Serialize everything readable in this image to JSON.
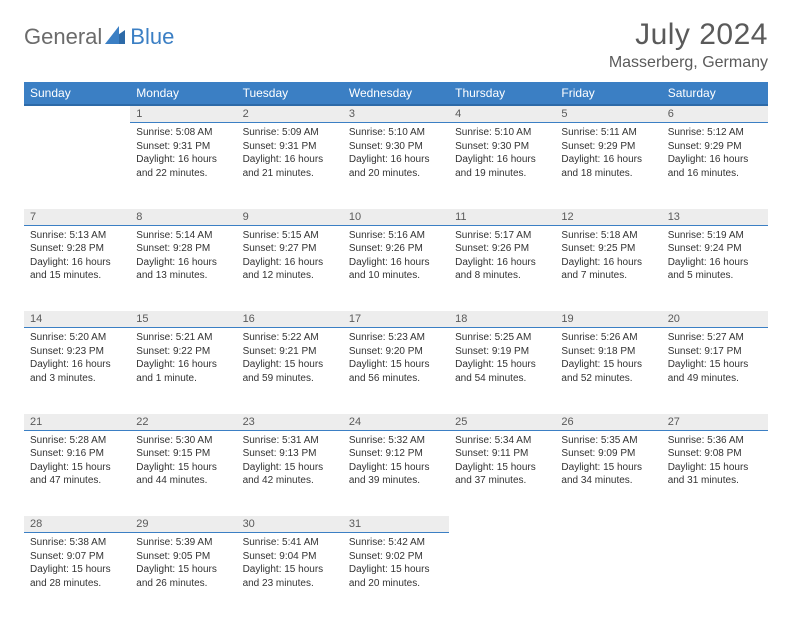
{
  "brand": {
    "part1": "General",
    "part2": "Blue"
  },
  "title": "July 2024",
  "location": "Masserberg, Germany",
  "colors": {
    "header_bg": "#3b7fc4",
    "header_border": "#2d6aa8",
    "daynum_bg": "#ededed",
    "text": "#333333",
    "muted": "#5a5a5a"
  },
  "weekdays": [
    "Sunday",
    "Monday",
    "Tuesday",
    "Wednesday",
    "Thursday",
    "Friday",
    "Saturday"
  ],
  "weeks": [
    [
      null,
      {
        "n": "1",
        "sr": "5:08 AM",
        "ss": "9:31 PM",
        "dl": "16 hours and 22 minutes."
      },
      {
        "n": "2",
        "sr": "5:09 AM",
        "ss": "9:31 PM",
        "dl": "16 hours and 21 minutes."
      },
      {
        "n": "3",
        "sr": "5:10 AM",
        "ss": "9:30 PM",
        "dl": "16 hours and 20 minutes."
      },
      {
        "n": "4",
        "sr": "5:10 AM",
        "ss": "9:30 PM",
        "dl": "16 hours and 19 minutes."
      },
      {
        "n": "5",
        "sr": "5:11 AM",
        "ss": "9:29 PM",
        "dl": "16 hours and 18 minutes."
      },
      {
        "n": "6",
        "sr": "5:12 AM",
        "ss": "9:29 PM",
        "dl": "16 hours and 16 minutes."
      }
    ],
    [
      {
        "n": "7",
        "sr": "5:13 AM",
        "ss": "9:28 PM",
        "dl": "16 hours and 15 minutes."
      },
      {
        "n": "8",
        "sr": "5:14 AM",
        "ss": "9:28 PM",
        "dl": "16 hours and 13 minutes."
      },
      {
        "n": "9",
        "sr": "5:15 AM",
        "ss": "9:27 PM",
        "dl": "16 hours and 12 minutes."
      },
      {
        "n": "10",
        "sr": "5:16 AM",
        "ss": "9:26 PM",
        "dl": "16 hours and 10 minutes."
      },
      {
        "n": "11",
        "sr": "5:17 AM",
        "ss": "9:26 PM",
        "dl": "16 hours and 8 minutes."
      },
      {
        "n": "12",
        "sr": "5:18 AM",
        "ss": "9:25 PM",
        "dl": "16 hours and 7 minutes."
      },
      {
        "n": "13",
        "sr": "5:19 AM",
        "ss": "9:24 PM",
        "dl": "16 hours and 5 minutes."
      }
    ],
    [
      {
        "n": "14",
        "sr": "5:20 AM",
        "ss": "9:23 PM",
        "dl": "16 hours and 3 minutes."
      },
      {
        "n": "15",
        "sr": "5:21 AM",
        "ss": "9:22 PM",
        "dl": "16 hours and 1 minute."
      },
      {
        "n": "16",
        "sr": "5:22 AM",
        "ss": "9:21 PM",
        "dl": "15 hours and 59 minutes."
      },
      {
        "n": "17",
        "sr": "5:23 AM",
        "ss": "9:20 PM",
        "dl": "15 hours and 56 minutes."
      },
      {
        "n": "18",
        "sr": "5:25 AM",
        "ss": "9:19 PM",
        "dl": "15 hours and 54 minutes."
      },
      {
        "n": "19",
        "sr": "5:26 AM",
        "ss": "9:18 PM",
        "dl": "15 hours and 52 minutes."
      },
      {
        "n": "20",
        "sr": "5:27 AM",
        "ss": "9:17 PM",
        "dl": "15 hours and 49 minutes."
      }
    ],
    [
      {
        "n": "21",
        "sr": "5:28 AM",
        "ss": "9:16 PM",
        "dl": "15 hours and 47 minutes."
      },
      {
        "n": "22",
        "sr": "5:30 AM",
        "ss": "9:15 PM",
        "dl": "15 hours and 44 minutes."
      },
      {
        "n": "23",
        "sr": "5:31 AM",
        "ss": "9:13 PM",
        "dl": "15 hours and 42 minutes."
      },
      {
        "n": "24",
        "sr": "5:32 AM",
        "ss": "9:12 PM",
        "dl": "15 hours and 39 minutes."
      },
      {
        "n": "25",
        "sr": "5:34 AM",
        "ss": "9:11 PM",
        "dl": "15 hours and 37 minutes."
      },
      {
        "n": "26",
        "sr": "5:35 AM",
        "ss": "9:09 PM",
        "dl": "15 hours and 34 minutes."
      },
      {
        "n": "27",
        "sr": "5:36 AM",
        "ss": "9:08 PM",
        "dl": "15 hours and 31 minutes."
      }
    ],
    [
      {
        "n": "28",
        "sr": "5:38 AM",
        "ss": "9:07 PM",
        "dl": "15 hours and 28 minutes."
      },
      {
        "n": "29",
        "sr": "5:39 AM",
        "ss": "9:05 PM",
        "dl": "15 hours and 26 minutes."
      },
      {
        "n": "30",
        "sr": "5:41 AM",
        "ss": "9:04 PM",
        "dl": "15 hours and 23 minutes."
      },
      {
        "n": "31",
        "sr": "5:42 AM",
        "ss": "9:02 PM",
        "dl": "15 hours and 20 minutes."
      },
      null,
      null,
      null
    ]
  ],
  "labels": {
    "sunrise": "Sunrise:",
    "sunset": "Sunset:",
    "daylight": "Daylight:"
  }
}
